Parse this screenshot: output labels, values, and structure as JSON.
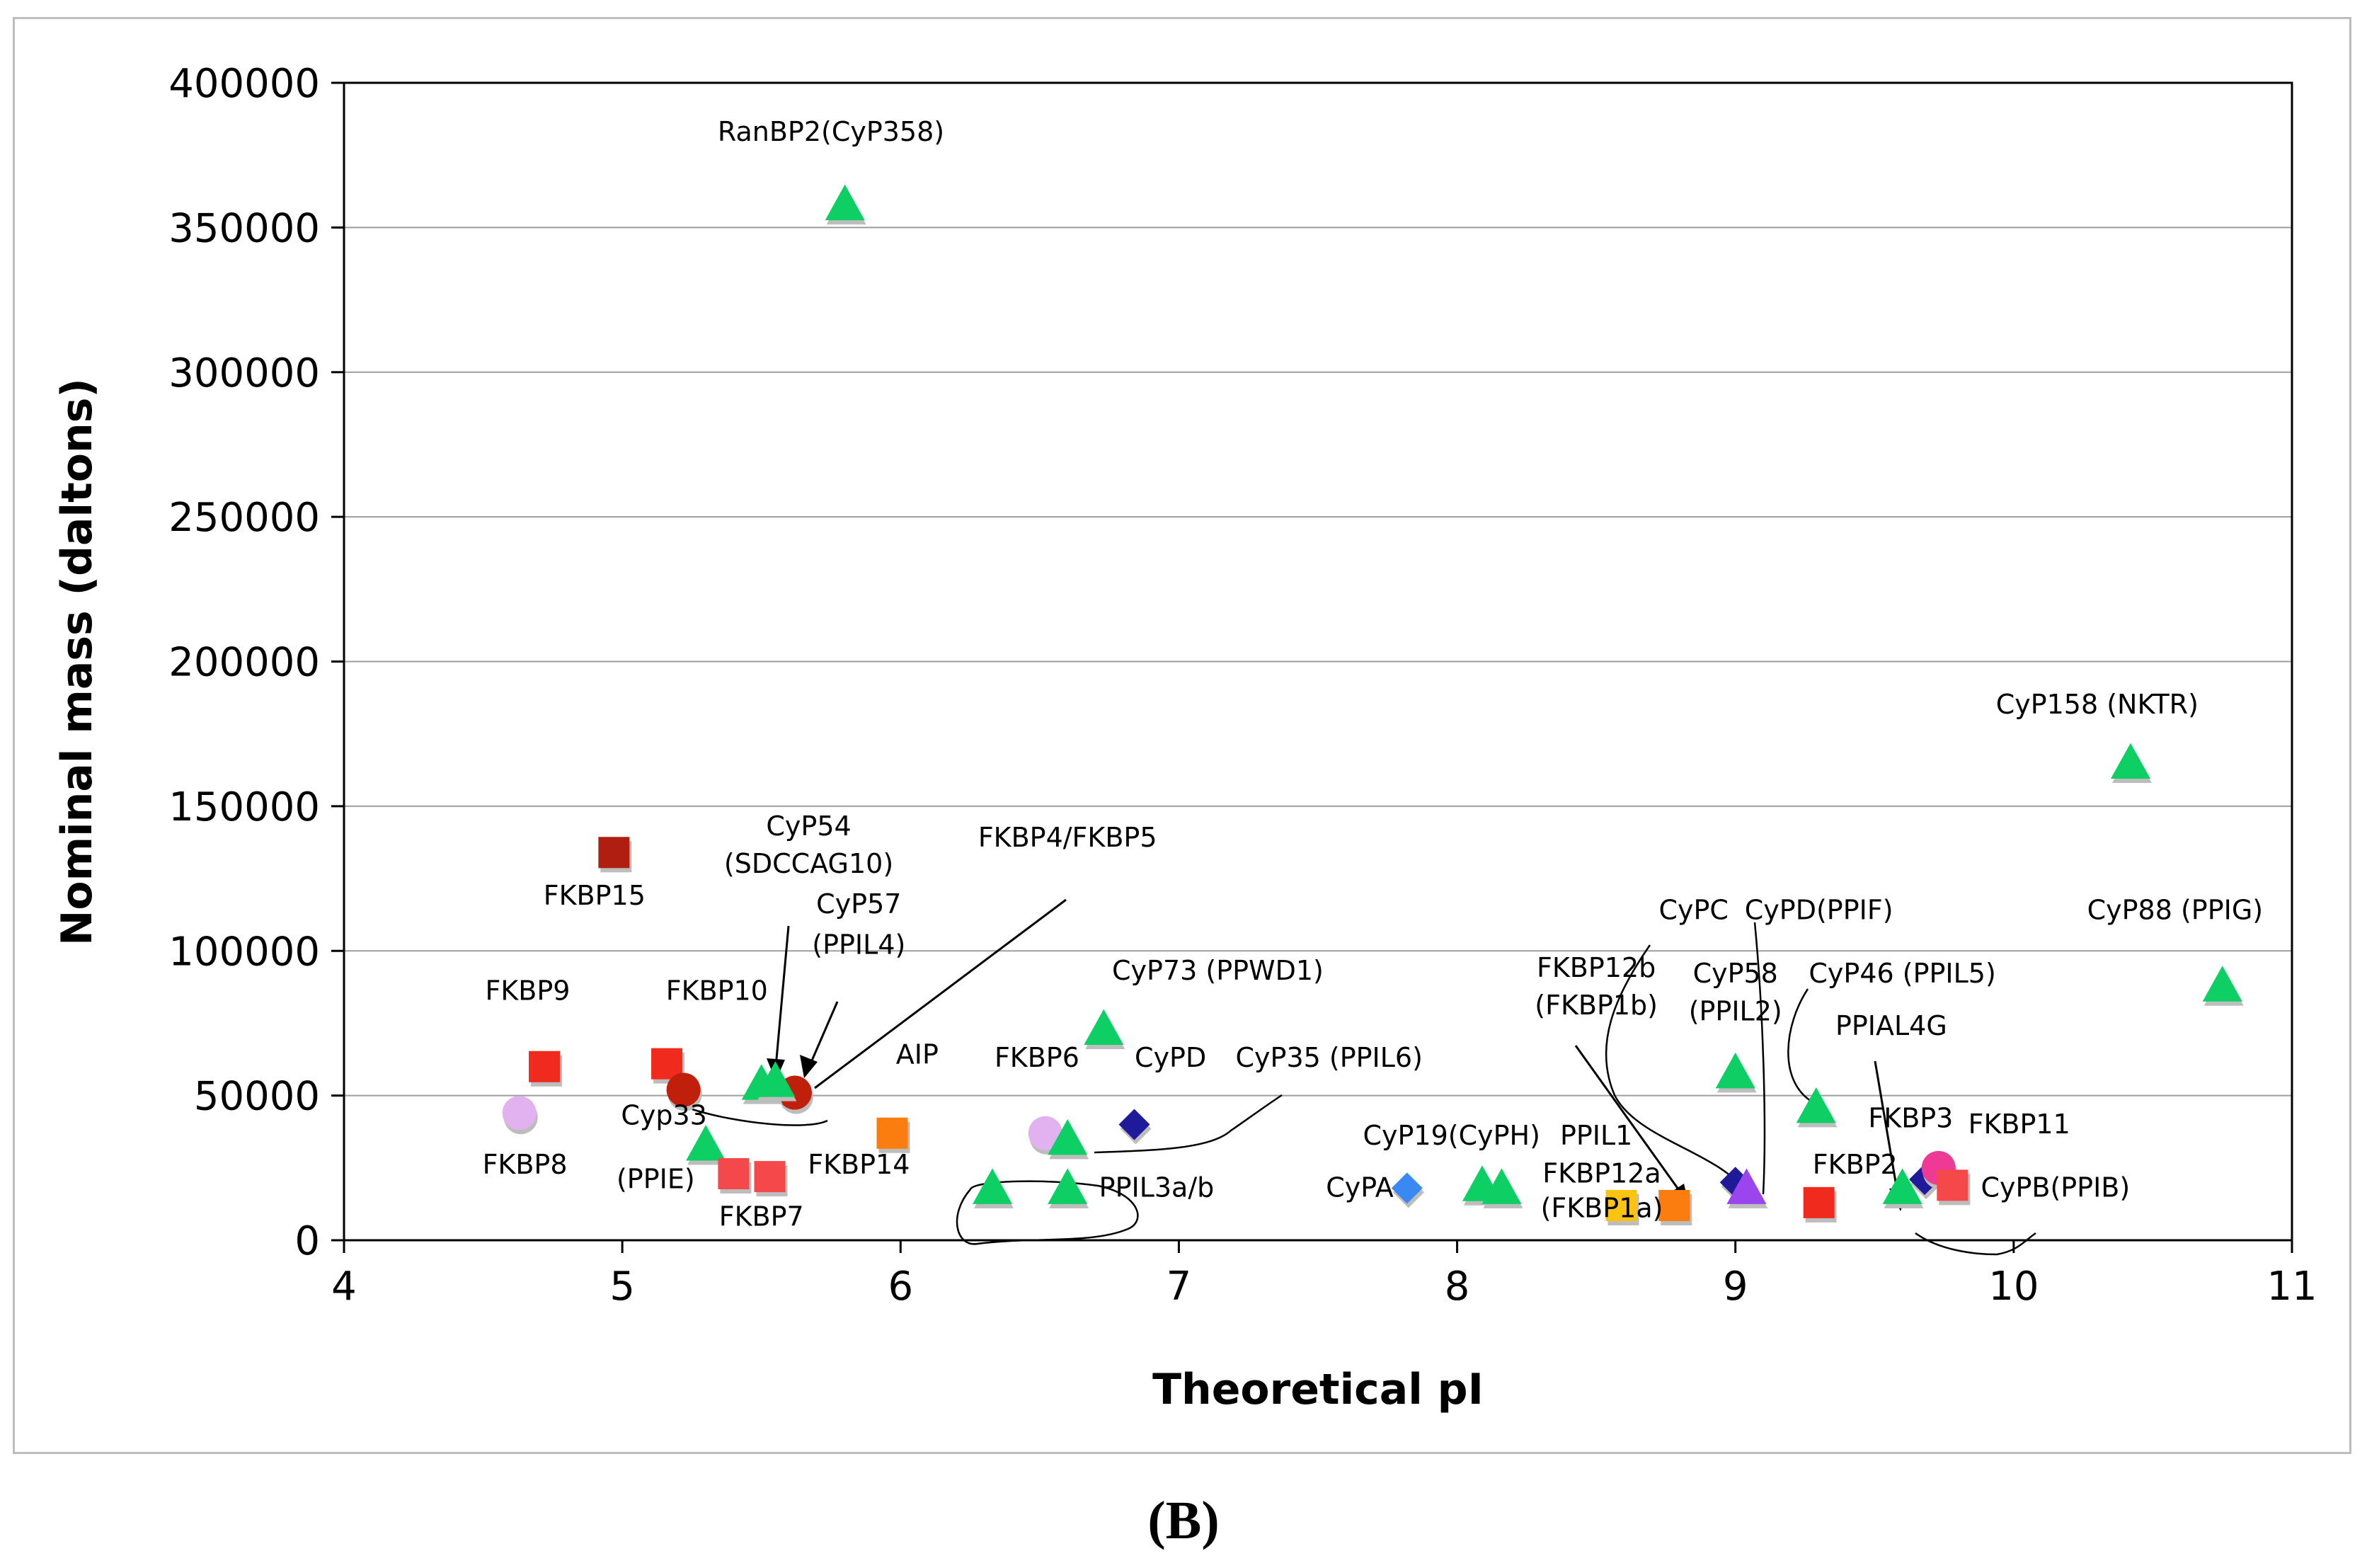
{
  "panel_label": "(B)",
  "chart_data": {
    "type": "scatter",
    "title": "",
    "xlabel": "Theoretical pI",
    "ylabel": "Nominal mass (daltons)",
    "xlim": [
      4,
      11
    ],
    "ylim": [
      0,
      400000
    ],
    "xticks": [
      "4",
      "5",
      "6",
      "7",
      "8",
      "9",
      "10",
      "11"
    ],
    "yticks": [
      "0",
      "50000",
      "100000",
      "150000",
      "200000",
      "250000",
      "300000",
      "350000",
      "400000"
    ],
    "grid": "horizontal",
    "legend": "none",
    "colors": {
      "red": "#f02b1d",
      "darkred": "#b01e10",
      "lightred": "#f4484a",
      "green": "#0ecf63",
      "lavender": "#e2b2f0",
      "orange": "#fb7d10",
      "yellow": "#fcc310",
      "navy": "#1f1a9a",
      "blue": "#3a88f2",
      "purple": "#9a45ee",
      "pink": "#ee3a95",
      "circle_red": "#c0200b"
    },
    "points": [
      {
        "x": 5.8,
        "y": 358000,
        "shape": "triangle",
        "color": "green"
      },
      {
        "x": 4.97,
        "y": 134000,
        "shape": "square",
        "color": "darkred"
      },
      {
        "x": 4.72,
        "y": 60000,
        "shape": "square",
        "color": "red"
      },
      {
        "x": 5.16,
        "y": 61000,
        "shape": "square",
        "color": "red"
      },
      {
        "x": 4.63,
        "y": 44000,
        "shape": "circle",
        "color": "lavender"
      },
      {
        "x": 5.22,
        "y": 52000,
        "shape": "circle",
        "color": "circle_red"
      },
      {
        "x": 5.62,
        "y": 51000,
        "shape": "circle",
        "color": "circle_red"
      },
      {
        "x": 5.5,
        "y": 54000,
        "shape": "triangle",
        "color": "green"
      },
      {
        "x": 5.55,
        "y": 55000,
        "shape": "triangle",
        "color": "green"
      },
      {
        "x": 5.3,
        "y": 33000,
        "shape": "triangle",
        "color": "green"
      },
      {
        "x": 5.4,
        "y": 23000,
        "shape": "square",
        "color": "lightred"
      },
      {
        "x": 5.53,
        "y": 22000,
        "shape": "square",
        "color": "lightred"
      },
      {
        "x": 5.97,
        "y": 37000,
        "shape": "square",
        "color": "orange"
      },
      {
        "x": 6.52,
        "y": 37000,
        "shape": "circle",
        "color": "lavender"
      },
      {
        "x": 6.6,
        "y": 35000,
        "shape": "triangle",
        "color": "green"
      },
      {
        "x": 6.33,
        "y": 18000,
        "shape": "triangle",
        "color": "green"
      },
      {
        "x": 6.6,
        "y": 18000,
        "shape": "triangle",
        "color": "green"
      },
      {
        "x": 6.73,
        "y": 73000,
        "shape": "triangle",
        "color": "green"
      },
      {
        "x": 6.84,
        "y": 40000,
        "shape": "diamond",
        "color": "navy"
      },
      {
        "x": 7.82,
        "y": 18000,
        "shape": "diamond",
        "color": "blue"
      },
      {
        "x": 8.09,
        "y": 19000,
        "shape": "triangle",
        "color": "green"
      },
      {
        "x": 8.16,
        "y": 18000,
        "shape": "triangle",
        "color": "green"
      },
      {
        "x": 8.59,
        "y": 12000,
        "shape": "square",
        "color": "yellow"
      },
      {
        "x": 8.78,
        "y": 12000,
        "shape": "square",
        "color": "orange"
      },
      {
        "x": 9.0,
        "y": 58000,
        "shape": "triangle",
        "color": "green"
      },
      {
        "x": 9.29,
        "y": 46000,
        "shape": "triangle",
        "color": "green"
      },
      {
        "x": 9.0,
        "y": 20000,
        "shape": "diamond",
        "color": "navy"
      },
      {
        "x": 9.04,
        "y": 18000,
        "shape": "triangle",
        "color": "purple"
      },
      {
        "x": 9.3,
        "y": 13000,
        "shape": "square",
        "color": "red"
      },
      {
        "x": 9.6,
        "y": 18000,
        "shape": "triangle",
        "color": "green"
      },
      {
        "x": 9.68,
        "y": 21000,
        "shape": "diamond",
        "color": "navy"
      },
      {
        "x": 9.73,
        "y": 25000,
        "shape": "circle",
        "color": "pink"
      },
      {
        "x": 9.78,
        "y": 19000,
        "shape": "square",
        "color": "lightred"
      },
      {
        "x": 10.42,
        "y": 165000,
        "shape": "triangle",
        "color": "green"
      },
      {
        "x": 10.75,
        "y": 88000,
        "shape": "triangle",
        "color": "green"
      }
    ],
    "annotations": [
      {
        "text": "RanBP2(CyP358)",
        "x": 5.75,
        "y": 380000
      },
      {
        "text": "FKBP15",
        "x": 4.9,
        "y": 116000
      },
      {
        "text": "CyP54",
        "x": 5.67,
        "y": 140000
      },
      {
        "text": "(SDCCAG10)",
        "x": 5.67,
        "y": 127000
      },
      {
        "text": "FKBP4/FKBP5",
        "x": 6.6,
        "y": 136000
      },
      {
        "text": "CyP57",
        "x": 5.85,
        "y": 113000
      },
      {
        "text": "(PPIL4)",
        "x": 5.85,
        "y": 99000
      },
      {
        "text": "FKBP9",
        "x": 4.66,
        "y": 83000
      },
      {
        "text": "FKBP10",
        "x": 5.34,
        "y": 83000
      },
      {
        "text": "AIP",
        "x": 6.06,
        "y": 61000
      },
      {
        "text": "FKBP6",
        "x": 6.49,
        "y": 60000
      },
      {
        "text": "CyPD",
        "x": 6.97,
        "y": 60000
      },
      {
        "text": "CyP35 (PPIL6)",
        "x": 7.54,
        "y": 60000
      },
      {
        "text": "CyP73 (PPWD1)",
        "x": 7.14,
        "y": 90000
      },
      {
        "text": "FKBP8",
        "x": 4.65,
        "y": 23000
      },
      {
        "text": "Cyp33",
        "x": 5.15,
        "y": 40000
      },
      {
        "text": "(PPIE)",
        "x": 5.12,
        "y": 18000
      },
      {
        "text": "FKBP14",
        "x": 5.85,
        "y": 23000
      },
      {
        "text": "FKBP7",
        "x": 5.5,
        "y": 5000
      },
      {
        "text": "PPIL3a/b",
        "x": 6.92,
        "y": 15000
      },
      {
        "text": "CyP19(CyPH)",
        "x": 7.98,
        "y": 33000
      },
      {
        "text": "PPIL1",
        "x": 8.5,
        "y": 33000
      },
      {
        "text": "CyPA",
        "x": 7.65,
        "y": 15000
      },
      {
        "text": "FKBP12a",
        "x": 8.52,
        "y": 20000
      },
      {
        "text": "(FKBP1a)",
        "x": 8.52,
        "y": 8000
      },
      {
        "text": "FKBP12b",
        "x": 8.5,
        "y": 91000
      },
      {
        "text": "(FKBP1b)",
        "x": 8.5,
        "y": 78000
      },
      {
        "text": "CyPC",
        "x": 8.85,
        "y": 111000
      },
      {
        "text": "CyPD(PPIF)",
        "x": 9.3,
        "y": 111000
      },
      {
        "text": "CyP58",
        "x": 9.0,
        "y": 89000
      },
      {
        "text": "(PPIL2)",
        "x": 9.0,
        "y": 76000
      },
      {
        "text": "CyP46 (PPIL5)",
        "x": 9.6,
        "y": 89000
      },
      {
        "text": "CyP88 (PPIG)",
        "x": 10.58,
        "y": 111000
      },
      {
        "text": "CyP158 (NKTR)",
        "x": 10.3,
        "y": 182000
      },
      {
        "text": "PPIAL4G",
        "x": 9.56,
        "y": 71000
      },
      {
        "text": "FKBP3",
        "x": 9.63,
        "y": 39000
      },
      {
        "text": "FKBP11",
        "x": 10.02,
        "y": 37000
      },
      {
        "text": "FKBP2",
        "x": 9.43,
        "y": 23000
      },
      {
        "text": "CyPB(PPIB)",
        "x": 10.15,
        "y": 15000
      }
    ]
  }
}
